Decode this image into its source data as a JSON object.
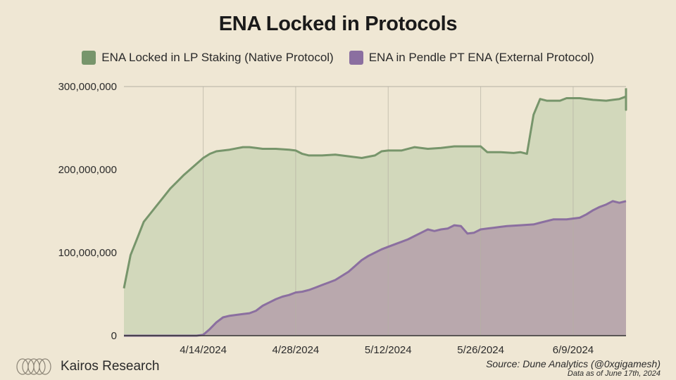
{
  "chart_data": {
    "type": "area",
    "title": "ENA Locked in Protocols",
    "xlabel": "",
    "ylabel": "",
    "x_start": "2024-04-02",
    "x_end": "2024-06-17",
    "x_ticks": [
      {
        "date": "2024-04-14",
        "label": "4/14/2024"
      },
      {
        "date": "2024-04-28",
        "label": "4/28/2024"
      },
      {
        "date": "2024-05-12",
        "label": "5/12/2024"
      },
      {
        "date": "2024-05-26",
        "label": "5/26/2024"
      },
      {
        "date": "2024-06-09",
        "label": "6/9/2024"
      }
    ],
    "ylim": [
      0,
      300000000
    ],
    "y_ticks": [
      {
        "value": 0,
        "label": "0"
      },
      {
        "value": 100000000,
        "label": "100,000,000"
      },
      {
        "value": 200000000,
        "label": "200,000,000"
      },
      {
        "value": 300000000,
        "label": "300,000,000"
      }
    ],
    "grid": "vertical",
    "legend_position": "top",
    "stacked": false,
    "series": [
      {
        "name": "ENA Locked in LP Staking (Native Protocol)",
        "color": "#77956b",
        "fill": "#d2d8bb",
        "points": [
          [
            "2024-04-02",
            57000000
          ],
          [
            "2024-04-03",
            97000000
          ],
          [
            "2024-04-04",
            117000000
          ],
          [
            "2024-04-05",
            137000000
          ],
          [
            "2024-04-06",
            147000000
          ],
          [
            "2024-04-07",
            157000000
          ],
          [
            "2024-04-08",
            167000000
          ],
          [
            "2024-04-09",
            177000000
          ],
          [
            "2024-04-10",
            185000000
          ],
          [
            "2024-04-11",
            193000000
          ],
          [
            "2024-04-12",
            200000000
          ],
          [
            "2024-04-13",
            207000000
          ],
          [
            "2024-04-14",
            214000000
          ],
          [
            "2024-04-15",
            219000000
          ],
          [
            "2024-04-16",
            222000000
          ],
          [
            "2024-04-18",
            224000000
          ],
          [
            "2024-04-20",
            227000000
          ],
          [
            "2024-04-21",
            227000000
          ],
          [
            "2024-04-22",
            226000000
          ],
          [
            "2024-04-23",
            225000000
          ],
          [
            "2024-04-25",
            225000000
          ],
          [
            "2024-04-27",
            224000000
          ],
          [
            "2024-04-28",
            223000000
          ],
          [
            "2024-04-29",
            219000000
          ],
          [
            "2024-04-30",
            217000000
          ],
          [
            "2024-05-02",
            217000000
          ],
          [
            "2024-05-04",
            218000000
          ],
          [
            "2024-05-06",
            216000000
          ],
          [
            "2024-05-08",
            214000000
          ],
          [
            "2024-05-10",
            217000000
          ],
          [
            "2024-05-11",
            222000000
          ],
          [
            "2024-05-12",
            223000000
          ],
          [
            "2024-05-14",
            223000000
          ],
          [
            "2024-05-16",
            227000000
          ],
          [
            "2024-05-18",
            225000000
          ],
          [
            "2024-05-20",
            226000000
          ],
          [
            "2024-05-21",
            227000000
          ],
          [
            "2024-05-22",
            228000000
          ],
          [
            "2024-05-24",
            228000000
          ],
          [
            "2024-05-26",
            228000000
          ],
          [
            "2024-05-27",
            221000000
          ],
          [
            "2024-05-29",
            221000000
          ],
          [
            "2024-05-31",
            220000000
          ],
          [
            "2024-06-01",
            221000000
          ],
          [
            "2024-06-02",
            219000000
          ],
          [
            "2024-06-03",
            266000000
          ],
          [
            "2024-06-04",
            285000000
          ],
          [
            "2024-06-05",
            283000000
          ],
          [
            "2024-06-07",
            283000000
          ],
          [
            "2024-06-08",
            286000000
          ],
          [
            "2024-06-10",
            286000000
          ],
          [
            "2024-06-12",
            284000000
          ],
          [
            "2024-06-14",
            283000000
          ],
          [
            "2024-06-15",
            284000000
          ],
          [
            "2024-06-16",
            285000000
          ],
          [
            "2024-06-17",
            288000000
          ],
          [
            "2024-06-18",
            274000000
          ],
          [
            "2024-06-19",
            272000000
          ],
          [
            "2024-06-20",
            278000000
          ],
          [
            "2024-06-21",
            283000000
          ],
          [
            "2024-06-22",
            280000000
          ],
          [
            "2024-06-23",
            282000000
          ],
          [
            "2024-06-24",
            298000000
          ]
        ]
      },
      {
        "name": "ENA in Pendle PT ENA (External Protocol)",
        "color": "#8b6fa0",
        "fill": "#b9a8ad",
        "points": [
          [
            "2024-04-02",
            0
          ],
          [
            "2024-04-08",
            0
          ],
          [
            "2024-04-09",
            0
          ],
          [
            "2024-04-10",
            0
          ],
          [
            "2024-04-11",
            0
          ],
          [
            "2024-04-12",
            0
          ],
          [
            "2024-04-13",
            0
          ],
          [
            "2024-04-14",
            1000000
          ],
          [
            "2024-04-15",
            8000000
          ],
          [
            "2024-04-16",
            16000000
          ],
          [
            "2024-04-17",
            22000000
          ],
          [
            "2024-04-18",
            24000000
          ],
          [
            "2024-04-19",
            25000000
          ],
          [
            "2024-04-20",
            26000000
          ],
          [
            "2024-04-21",
            27000000
          ],
          [
            "2024-04-22",
            30000000
          ],
          [
            "2024-04-23",
            36000000
          ],
          [
            "2024-04-24",
            40000000
          ],
          [
            "2024-04-25",
            44000000
          ],
          [
            "2024-04-26",
            47000000
          ],
          [
            "2024-04-27",
            49000000
          ],
          [
            "2024-04-28",
            52000000
          ],
          [
            "2024-04-29",
            53000000
          ],
          [
            "2024-04-30",
            55000000
          ],
          [
            "2024-05-01",
            58000000
          ],
          [
            "2024-05-02",
            61000000
          ],
          [
            "2024-05-03",
            64000000
          ],
          [
            "2024-05-04",
            67000000
          ],
          [
            "2024-05-05",
            72000000
          ],
          [
            "2024-05-06",
            77000000
          ],
          [
            "2024-05-07",
            84000000
          ],
          [
            "2024-05-08",
            91000000
          ],
          [
            "2024-05-09",
            96000000
          ],
          [
            "2024-05-10",
            100000000
          ],
          [
            "2024-05-11",
            104000000
          ],
          [
            "2024-05-12",
            107000000
          ],
          [
            "2024-05-13",
            110000000
          ],
          [
            "2024-05-14",
            113000000
          ],
          [
            "2024-05-15",
            116000000
          ],
          [
            "2024-05-16",
            120000000
          ],
          [
            "2024-05-17",
            124000000
          ],
          [
            "2024-05-18",
            128000000
          ],
          [
            "2024-05-19",
            126000000
          ],
          [
            "2024-05-20",
            128000000
          ],
          [
            "2024-05-21",
            129000000
          ],
          [
            "2024-05-22",
            133000000
          ],
          [
            "2024-05-23",
            132000000
          ],
          [
            "2024-05-24",
            123000000
          ],
          [
            "2024-05-25",
            124000000
          ],
          [
            "2024-05-26",
            128000000
          ],
          [
            "2024-05-27",
            129000000
          ],
          [
            "2024-05-28",
            130000000
          ],
          [
            "2024-05-29",
            131000000
          ],
          [
            "2024-05-30",
            132000000
          ],
          [
            "2024-06-01",
            133000000
          ],
          [
            "2024-06-03",
            134000000
          ],
          [
            "2024-06-04",
            136000000
          ],
          [
            "2024-06-06",
            140000000
          ],
          [
            "2024-06-08",
            140000000
          ],
          [
            "2024-06-10",
            142000000
          ],
          [
            "2024-06-11",
            146000000
          ],
          [
            "2024-06-12",
            151000000
          ],
          [
            "2024-06-13",
            155000000
          ],
          [
            "2024-06-14",
            158000000
          ],
          [
            "2024-06-15",
            162000000
          ],
          [
            "2024-06-16",
            160000000
          ],
          [
            "2024-06-24",
            162000000
          ]
        ]
      }
    ]
  },
  "footer": {
    "brand": "Kairos Research",
    "source": "Source: Dune Analytics (@0xgigamesh)",
    "as_of": "Data as of June 17th, 2024"
  }
}
